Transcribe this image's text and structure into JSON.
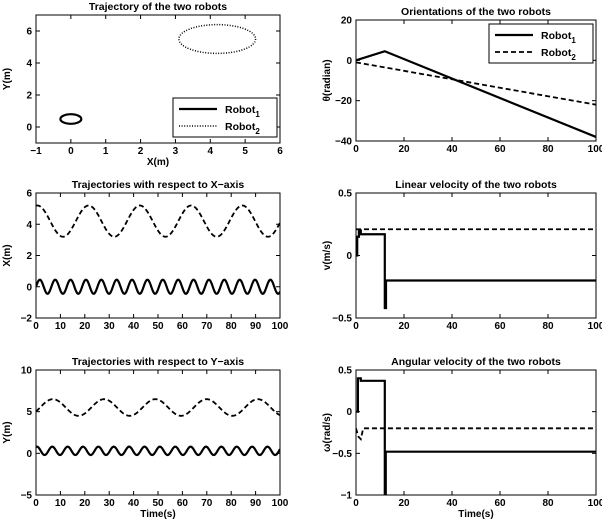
{
  "chart_data": [
    {
      "id": "traj",
      "type": "line",
      "title": "Trajectory of the two robots",
      "xlabel": "X(m)",
      "ylabel": "Y(m)",
      "xlim": [
        -1,
        6
      ],
      "ylim": [
        -1,
        7
      ],
      "xticks": [
        -1,
        0,
        1,
        2,
        3,
        4,
        5,
        6
      ],
      "yticks": [
        0,
        2,
        4,
        6
      ],
      "legend": {
        "position": "bottom-right",
        "entries": [
          {
            "base": "Robot",
            "sub": "1",
            "style": "solid"
          },
          {
            "base": "Robot",
            "sub": "2",
            "style": "dotted"
          }
        ]
      },
      "series": [
        {
          "style": "solid",
          "shape": "ellipse",
          "center": [
            0,
            0.5
          ],
          "radii": [
            0.3,
            0.3
          ]
        },
        {
          "style": "dotted",
          "shape": "ellipse",
          "center": [
            4.2,
            5.5
          ],
          "radii": [
            1.1,
            0.9
          ]
        }
      ]
    },
    {
      "id": "orient",
      "type": "line",
      "title": "Orientations of the two robots",
      "xlabel": "",
      "ylabel": "θ(radian)",
      "xlim": [
        0,
        100
      ],
      "ylim": [
        -40,
        20
      ],
      "xticks": [
        0,
        20,
        40,
        60,
        80,
        100
      ],
      "yticks": [
        -40,
        -20,
        0,
        20
      ],
      "legend": {
        "position": "top-right",
        "entries": [
          {
            "base": "Robot",
            "sub": "1",
            "style": "solid"
          },
          {
            "base": "Robot",
            "sub": "2",
            "style": "dashed"
          }
        ]
      },
      "series": [
        {
          "style": "solid",
          "x": [
            0,
            12,
            100
          ],
          "y": [
            0,
            4.5,
            -38
          ]
        },
        {
          "style": "dashed",
          "x": [
            0,
            100
          ],
          "y": [
            -1,
            -22
          ]
        }
      ]
    },
    {
      "id": "xt",
      "type": "line",
      "title": "Trajectories with respect to X−axis",
      "xlabel": "",
      "ylabel": "X(m)",
      "xlim": [
        0,
        100
      ],
      "ylim": [
        -2,
        6
      ],
      "xticks": [
        0,
        10,
        20,
        30,
        40,
        50,
        60,
        70,
        80,
        90,
        100
      ],
      "yticks": [
        -2,
        0,
        2,
        4,
        6
      ],
      "series": [
        {
          "style": "solid",
          "fn": "sine",
          "offset": 0,
          "amplitude": 0.45,
          "period": 6.3,
          "phase": 0
        },
        {
          "style": "dashed",
          "fn": "sine",
          "offset": 4.2,
          "amplitude": 1.0,
          "period": 21,
          "phase": 1.4
        }
      ]
    },
    {
      "id": "vel",
      "type": "line",
      "title": "Linear velocity of the two robots",
      "xlabel": "",
      "ylabel": "v(m/s)",
      "xlim": [
        0,
        100
      ],
      "ylim": [
        -0.5,
        0.5
      ],
      "xticks": [
        0,
        20,
        40,
        60,
        80,
        100
      ],
      "yticks": [
        -0.5,
        0,
        0.5
      ],
      "series": [
        {
          "style": "solid",
          "x": [
            0,
            0.5,
            0.5,
            1.2,
            1.2,
            2,
            2,
            12,
            12,
            12.5,
            12.5,
            100
          ],
          "y": [
            0,
            0,
            0.15,
            0.15,
            0.2,
            0.2,
            0.17,
            0.17,
            -0.42,
            -0.42,
            -0.2,
            -0.2
          ]
        },
        {
          "style": "dashed",
          "x": [
            0,
            100
          ],
          "y": [
            0.21,
            0.21
          ]
        }
      ]
    },
    {
      "id": "yt",
      "type": "line",
      "title": "Trajectories with respect to Y−axis",
      "xlabel": "Time(s)",
      "ylabel": "Y(m)",
      "xlim": [
        0,
        100
      ],
      "ylim": [
        -5,
        10
      ],
      "xticks": [
        0,
        10,
        20,
        30,
        40,
        50,
        60,
        70,
        80,
        90,
        100
      ],
      "yticks": [
        -5,
        0,
        5,
        10
      ],
      "series": [
        {
          "style": "solid",
          "fn": "sine",
          "offset": 0.3,
          "amplitude": 0.5,
          "period": 6.3,
          "phase": 1.2
        },
        {
          "style": "dashed",
          "fn": "sine",
          "offset": 5.5,
          "amplitude": 1.0,
          "period": 21,
          "phase": -0.5
        }
      ]
    },
    {
      "id": "omega",
      "type": "line",
      "title": "Angular velocity of the two robots",
      "xlabel": "Time(s)",
      "ylabel": "ω(rad/s)",
      "xlim": [
        0,
        100
      ],
      "ylim": [
        -1,
        0.5
      ],
      "xticks": [
        0,
        20,
        40,
        60,
        80,
        100
      ],
      "yticks": [
        -1,
        -0.5,
        0,
        0.5
      ],
      "series": [
        {
          "style": "solid",
          "x": [
            0,
            0.8,
            0.8,
            2,
            2,
            12,
            12,
            12.4,
            12.4,
            100
          ],
          "y": [
            0,
            0,
            0.4,
            0.4,
            0.37,
            0.37,
            -1,
            -1,
            -0.48,
            -0.48
          ]
        },
        {
          "style": "dashed",
          "x": [
            0,
            1,
            2,
            3,
            4,
            100
          ],
          "y": [
            -0.2,
            -0.3,
            -0.33,
            -0.2,
            -0.2,
            -0.2
          ]
        }
      ]
    }
  ]
}
